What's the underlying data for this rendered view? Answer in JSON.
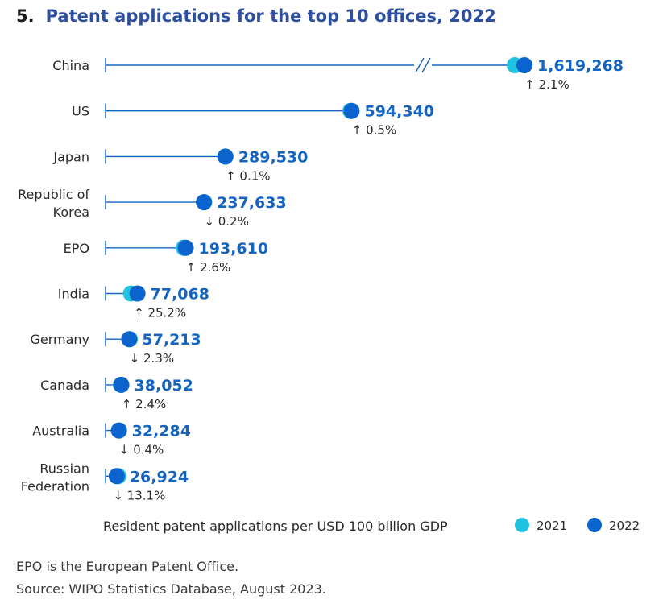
{
  "header": {
    "number": "5.",
    "title": "Patent applications for the top 10 offices, 2022"
  },
  "chart_data": {
    "type": "dot",
    "title": "Patent applications for the top 10 offices, 2022",
    "xlabel": "Resident patent applications per USD 100 billion GDP",
    "axis_break": "China (//)",
    "series": [
      {
        "name": "2021",
        "color": "#1fc3e0"
      },
      {
        "name": "2022",
        "color": "#0b63ce"
      }
    ],
    "rows": [
      {
        "label": [
          "China"
        ],
        "v2022": 1619268,
        "v2021": 1586000,
        "value_label": "1,619,268",
        "change_dir": "up",
        "change": "2.1%",
        "arrow": "↑"
      },
      {
        "label": [
          "US"
        ],
        "v2022": 594340,
        "v2021": 591400,
        "value_label": "594,340",
        "change_dir": "up",
        "change": "0.5%",
        "arrow": "↑"
      },
      {
        "label": [
          "Japan"
        ],
        "v2022": 289530,
        "v2021": 289240,
        "value_label": "289,530",
        "change_dir": "up",
        "change": "0.1%",
        "arrow": "↑"
      },
      {
        "label": [
          "Republic of",
          "Korea"
        ],
        "v2022": 237633,
        "v2021": 238110,
        "value_label": "237,633",
        "change_dir": "down",
        "change": "0.2%",
        "arrow": "↓"
      },
      {
        "label": [
          "EPO"
        ],
        "v2022": 193610,
        "v2021": 188700,
        "value_label": "193,610",
        "change_dir": "up",
        "change": "2.6%",
        "arrow": "↑"
      },
      {
        "label": [
          "India"
        ],
        "v2022": 77068,
        "v2021": 61560,
        "value_label": "77,068",
        "change_dir": "up",
        "change": "25.2%",
        "arrow": "↑"
      },
      {
        "label": [
          "Germany"
        ],
        "v2022": 57213,
        "v2021": 58560,
        "value_label": "57,213",
        "change_dir": "down",
        "change": "2.3%",
        "arrow": "↓"
      },
      {
        "label": [
          "Canada"
        ],
        "v2022": 38052,
        "v2021": 37160,
        "value_label": "38,052",
        "change_dir": "up",
        "change": "2.4%",
        "arrow": "↑"
      },
      {
        "label": [
          "Australia"
        ],
        "v2022": 32284,
        "v2021": 32410,
        "value_label": "32,284",
        "change_dir": "down",
        "change": "0.4%",
        "arrow": "↓"
      },
      {
        "label": [
          "Russian",
          "Federation"
        ],
        "v2022": 26924,
        "v2021": 30990,
        "value_label": "26,924",
        "change_dir": "down",
        "change": "13.1%",
        "arrow": "↓"
      }
    ]
  },
  "footer": {
    "note": "EPO is the European Patent Office.",
    "source": "Source: WIPO Statistics Database, August 2023."
  }
}
